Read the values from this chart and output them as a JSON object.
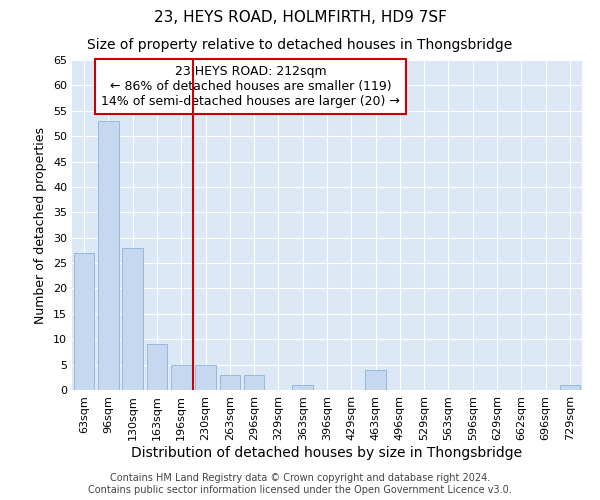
{
  "title": "23, HEYS ROAD, HOLMFIRTH, HD9 7SF",
  "subtitle": "Size of property relative to detached houses in Thongsbridge",
  "xlabel": "Distribution of detached houses by size in Thongsbridge",
  "ylabel": "Number of detached properties",
  "footer_line1": "Contains HM Land Registry data © Crown copyright and database right 2024.",
  "footer_line2": "Contains public sector information licensed under the Open Government Licence v3.0.",
  "categories": [
    "63sqm",
    "96sqm",
    "130sqm",
    "163sqm",
    "196sqm",
    "230sqm",
    "263sqm",
    "296sqm",
    "329sqm",
    "363sqm",
    "396sqm",
    "429sqm",
    "463sqm",
    "496sqm",
    "529sqm",
    "563sqm",
    "596sqm",
    "629sqm",
    "662sqm",
    "696sqm",
    "729sqm"
  ],
  "values": [
    27,
    53,
    28,
    9,
    5,
    5,
    3,
    3,
    0,
    1,
    0,
    0,
    4,
    0,
    0,
    0,
    0,
    0,
    0,
    0,
    1
  ],
  "bar_color": "#c5d8f0",
  "bar_edge_color": "#8ab4d8",
  "fig_background_color": "#ffffff",
  "ax_background_color": "#dce8f5",
  "grid_color": "#ffffff",
  "annotation_box_text": "23 HEYS ROAD: 212sqm\n← 86% of detached houses are smaller (119)\n14% of semi-detached houses are larger (20) →",
  "annotation_box_facecolor": "#ffffff",
  "annotation_box_edgecolor": "#cc0000",
  "vline_x": 4.5,
  "vline_color": "#cc0000",
  "ylim": [
    0,
    65
  ],
  "yticks": [
    0,
    5,
    10,
    15,
    20,
    25,
    30,
    35,
    40,
    45,
    50,
    55,
    60,
    65
  ],
  "title_fontsize": 11,
  "subtitle_fontsize": 10,
  "xlabel_fontsize": 10,
  "ylabel_fontsize": 9,
  "tick_fontsize": 8,
  "annotation_fontsize": 9,
  "footer_fontsize": 7
}
